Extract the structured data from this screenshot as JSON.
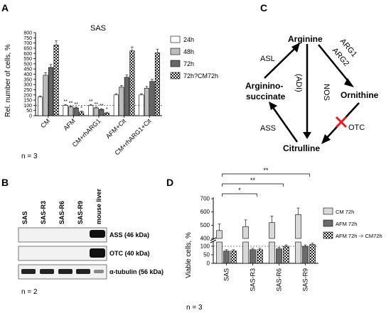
{
  "panels": {
    "A": "A",
    "B": "B",
    "C": "C",
    "D": "D"
  },
  "chart_data": [
    {
      "type": "bar",
      "panel": "A",
      "title": "SAS",
      "ylabel": "Rel. number of cells, %",
      "ylim": [
        0,
        800
      ],
      "yticks": [
        "0",
        "50",
        "100",
        "150",
        "200",
        "250",
        "300",
        "350",
        "400",
        "450",
        "500",
        "550",
        "600",
        "650",
        "700",
        "750",
        "800"
      ],
      "reference_line": 100,
      "categories": [
        "CM",
        "AFM",
        "CM+rhARG1",
        "AFM+Cit",
        "CM+rhARG1+Cit"
      ],
      "series": [
        {
          "name": "24h",
          "values": [
            180,
            100,
            100,
            200,
            200
          ],
          "fill": "#ffffff"
        },
        {
          "name": "48h",
          "values": [
            390,
            85,
            75,
            275,
            265
          ],
          "fill": "#bdbdbd"
        },
        {
          "name": "72h",
          "values": [
            465,
            75,
            60,
            370,
            330
          ],
          "fill": "#666666"
        },
        {
          "name": "72h?CM72h",
          "values": [
            680,
            35,
            25,
            625,
            605
          ],
          "fill": "checker"
        }
      ],
      "significance": [
        [
          "",
          "",
          "",
          ""
        ],
        [
          "**",
          "**",
          "**",
          "*"
        ],
        [
          "**",
          "**",
          "**",
          "*"
        ],
        [
          "",
          "",
          "",
          ""
        ],
        [
          "",
          "",
          "",
          ""
        ]
      ],
      "grid": false,
      "legend": "right",
      "note": "n = 3"
    },
    {
      "type": "bar",
      "panel": "D",
      "ylabel": "Viable cells, %",
      "yticks_lower": [
        "0",
        "50",
        "100"
      ],
      "yticks_upper": [
        "400",
        "500",
        "600",
        "700"
      ],
      "axis_break": true,
      "reference_line": 100,
      "categories": [
        "SAS",
        "SAS-R3",
        "SAS-R6",
        "SAS-R9"
      ],
      "series": [
        {
          "name": "CM 72h",
          "values": [
            460,
            490,
            520,
            580
          ],
          "fill": "#d9d9d9"
        },
        {
          "name": "AFM 72h",
          "values": [
            72,
            80,
            85,
            100
          ],
          "fill": "#6b6b6b"
        },
        {
          "name": "AFM 72h -> CM72h",
          "values": [
            72,
            80,
            100,
            110
          ],
          "fill": "checker"
        }
      ],
      "significance_brackets": [
        "*",
        "**",
        "**"
      ],
      "grid": false,
      "legend": "right",
      "note": "n = 3"
    }
  ],
  "diagram_c": {
    "nodes": {
      "arginine": "Arginine",
      "ornithine": "Ornithine",
      "citrulline": "Citrulline",
      "argininosuccinate_1": "Arginino-",
      "argininosuccinate_2": "succinate"
    },
    "labels": {
      "asl": "ASL",
      "ass": "ASS",
      "nos": "NOS",
      "adi": "(ADI)",
      "arg1": "ARG1",
      "arg2": "ARG2",
      "otc": "OTC"
    }
  },
  "blot_b": {
    "lanes": [
      "SAS",
      "SAS-R3",
      "SAS-R6",
      "SAS-R9",
      "mouse liver"
    ],
    "rows": [
      "ASS (46 kDa)",
      "OTC (40 kDa)",
      "α-tubulin (56 kDa)"
    ],
    "n": "n = 2"
  }
}
